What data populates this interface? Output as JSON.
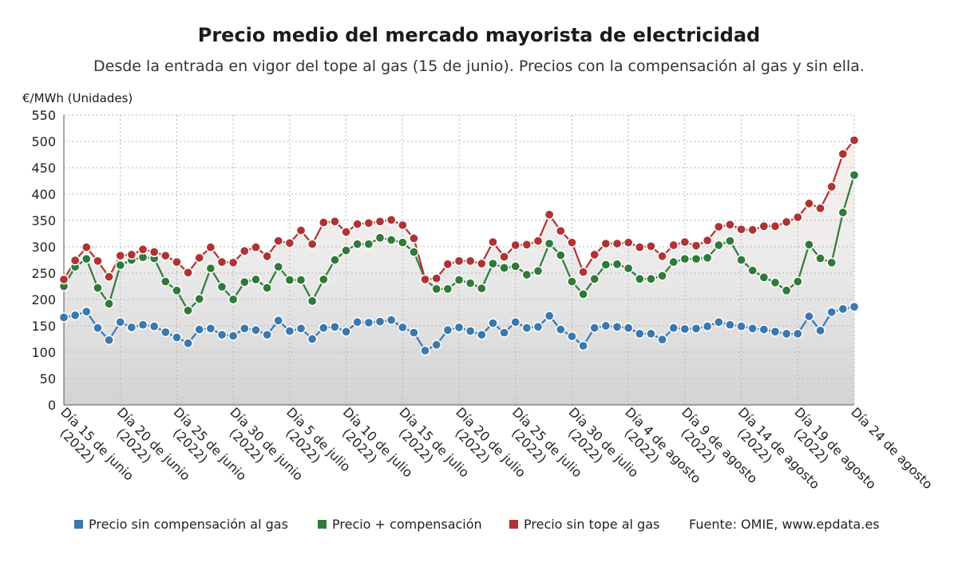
{
  "chart_data": {
    "type": "line",
    "title": "Precio medio del mercado mayorista de electricidad",
    "subtitle": "Desde la entrada en vigor del tope al gas (15 de junio). Precios con la compensación al gas y sin ella.",
    "ylabel": "€/MWh (Unidades)",
    "ylim": [
      0,
      550
    ],
    "yticks": [
      0,
      50,
      100,
      150,
      200,
      250,
      300,
      350,
      400,
      450,
      500,
      550
    ],
    "grid": true,
    "legend_position": "bottom",
    "x_tick_labels": [
      [
        "Día 15 de junio",
        "(2022)"
      ],
      [
        "Día 20 de junio",
        "(2022)"
      ],
      [
        "Día 25 de junio",
        "(2022)"
      ],
      [
        "Día 30 de junio",
        "(2022)"
      ],
      [
        "Día 5 de julio",
        "(2022)"
      ],
      [
        "Día 10 de julio",
        "(2022)"
      ],
      [
        "Día 15 de julio",
        "(2022)"
      ],
      [
        "Día 20 de julio",
        "(2022)"
      ],
      [
        "Día 25 de julio",
        "(2022)"
      ],
      [
        "Día 30 de julio",
        "(2022)"
      ],
      [
        "Día 4 de agosto",
        "(2022)"
      ],
      [
        "Día 9 de agosto",
        "(2022)"
      ],
      [
        "Día 14 de agosto",
        "(2022)"
      ],
      [
        "Día 19 de agosto",
        "(2022)"
      ],
      [
        "Día 24 de agosto",
        ""
      ]
    ],
    "x": [
      "2022-06-15",
      "2022-06-16",
      "2022-06-17",
      "2022-06-18",
      "2022-06-19",
      "2022-06-20",
      "2022-06-21",
      "2022-06-22",
      "2022-06-23",
      "2022-06-24",
      "2022-06-25",
      "2022-06-26",
      "2022-06-27",
      "2022-06-28",
      "2022-06-29",
      "2022-06-30",
      "2022-07-01",
      "2022-07-02",
      "2022-07-03",
      "2022-07-04",
      "2022-07-05",
      "2022-07-06",
      "2022-07-07",
      "2022-07-08",
      "2022-07-09",
      "2022-07-10",
      "2022-07-11",
      "2022-07-12",
      "2022-07-13",
      "2022-07-14",
      "2022-07-15",
      "2022-07-16",
      "2022-07-17",
      "2022-07-18",
      "2022-07-19",
      "2022-07-20",
      "2022-07-21",
      "2022-07-22",
      "2022-07-23",
      "2022-07-24",
      "2022-07-25",
      "2022-07-26",
      "2022-07-27",
      "2022-07-28",
      "2022-07-29",
      "2022-07-30",
      "2022-07-31",
      "2022-08-01",
      "2022-08-02",
      "2022-08-03",
      "2022-08-04",
      "2022-08-05",
      "2022-08-06",
      "2022-08-07",
      "2022-08-08",
      "2022-08-09",
      "2022-08-10",
      "2022-08-11",
      "2022-08-12",
      "2022-08-13",
      "2022-08-14",
      "2022-08-15",
      "2022-08-16",
      "2022-08-17",
      "2022-08-18",
      "2022-08-19",
      "2022-08-20",
      "2022-08-21",
      "2022-08-22",
      "2022-08-23",
      "2022-08-24"
    ],
    "series": [
      {
        "name": "Precio sin compensación al gas",
        "color": "#3a78b0",
        "values": [
          166,
          170,
          177,
          146,
          123,
          157,
          147,
          152,
          149,
          138,
          128,
          117,
          143,
          145,
          133,
          131,
          145,
          142,
          133,
          160,
          140,
          145,
          125,
          146,
          148,
          139,
          157,
          156,
          158,
          161,
          147,
          137,
          103,
          114,
          142,
          147,
          140,
          133,
          155,
          137,
          157,
          146,
          148,
          169,
          143,
          130,
          112,
          146,
          150,
          148,
          146,
          135,
          135,
          124,
          146,
          144,
          145,
          149,
          157,
          152,
          149,
          145,
          143,
          139,
          135,
          135,
          168,
          141,
          176,
          182,
          186
        ]
      },
      {
        "name": "Precio + compensación",
        "color": "#2f7a38",
        "values": [
          225,
          262,
          277,
          222,
          192,
          265,
          275,
          280,
          278,
          234,
          217,
          179,
          201,
          259,
          224,
          200,
          233,
          238,
          222,
          262,
          237,
          237,
          197,
          238,
          275,
          293,
          305,
          305,
          317,
          313,
          308,
          290,
          238,
          220,
          220,
          237,
          231,
          221,
          268,
          260,
          263,
          247,
          254,
          306,
          284,
          234,
          210,
          239,
          266,
          267,
          259,
          239,
          239,
          245,
          271,
          277,
          277,
          279,
          303,
          311,
          275,
          255,
          242,
          232,
          217,
          234,
          304,
          278,
          270,
          365,
          436
        ]
      },
      {
        "name": "Precio sin tope al gas",
        "color": "#b03333",
        "values": [
          238,
          274,
          299,
          273,
          243,
          283,
          285,
          295,
          290,
          283,
          271,
          251,
          279,
          299,
          271,
          270,
          292,
          299,
          282,
          311,
          307,
          331,
          305,
          346,
          348,
          328,
          343,
          345,
          348,
          351,
          341,
          316,
          238,
          240,
          267,
          273,
          273,
          268,
          309,
          281,
          303,
          304,
          311,
          361,
          330,
          308,
          252,
          285,
          306,
          306,
          308,
          299,
          301,
          282,
          303,
          309,
          302,
          312,
          338,
          342,
          333,
          332,
          339,
          339,
          347,
          356,
          382,
          373,
          414,
          476,
          502
        ]
      }
    ]
  },
  "legend": [
    {
      "label": "Precio sin compensación al gas",
      "color": "#3a78b0"
    },
    {
      "label": "Precio + compensación",
      "color": "#2f7a38"
    },
    {
      "label": "Precio sin tope al gas",
      "color": "#b03333"
    }
  ],
  "source": "Fuente: OMIE, www.epdata.es"
}
